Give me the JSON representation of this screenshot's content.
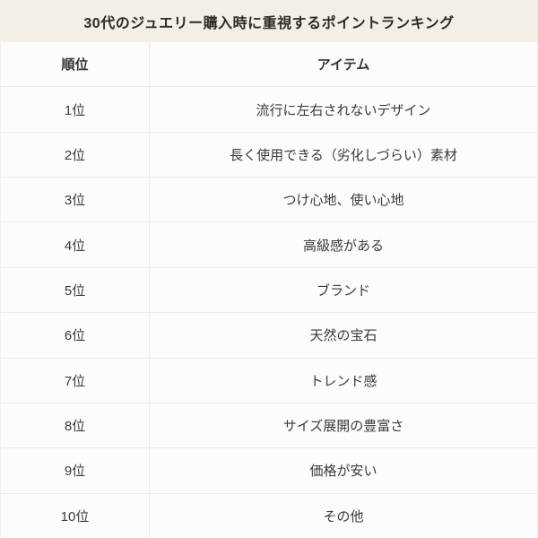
{
  "chart_data": {
    "type": "table",
    "title": "30代のジュエリー購入時に重視するポイントランキング",
    "columns": [
      "順位",
      "アイテム"
    ],
    "rows": [
      {
        "rank": "1位",
        "item": "流行に左右されないデザイン"
      },
      {
        "rank": "2位",
        "item": "長く使用できる（劣化しづらい）素材"
      },
      {
        "rank": "3位",
        "item": "つけ心地、使い心地"
      },
      {
        "rank": "4位",
        "item": "高級感がある"
      },
      {
        "rank": "5位",
        "item": "ブランド"
      },
      {
        "rank": "6位",
        "item": "天然の宝石"
      },
      {
        "rank": "7位",
        "item": "トレンド感"
      },
      {
        "rank": "8位",
        "item": "サイズ展開の豊富さ"
      },
      {
        "rank": "9位",
        "item": "価格が安い"
      },
      {
        "rank": "10位",
        "item": "その他"
      }
    ],
    "layout": {
      "legend": "none",
      "grid": "table-borders"
    }
  },
  "colors": {
    "page_background": "#f4efe5",
    "table_background": "#fdfcfd",
    "border": "#ebe9ed",
    "title_text": "#2e2a25",
    "cell_text": "#3a3a3a"
  }
}
